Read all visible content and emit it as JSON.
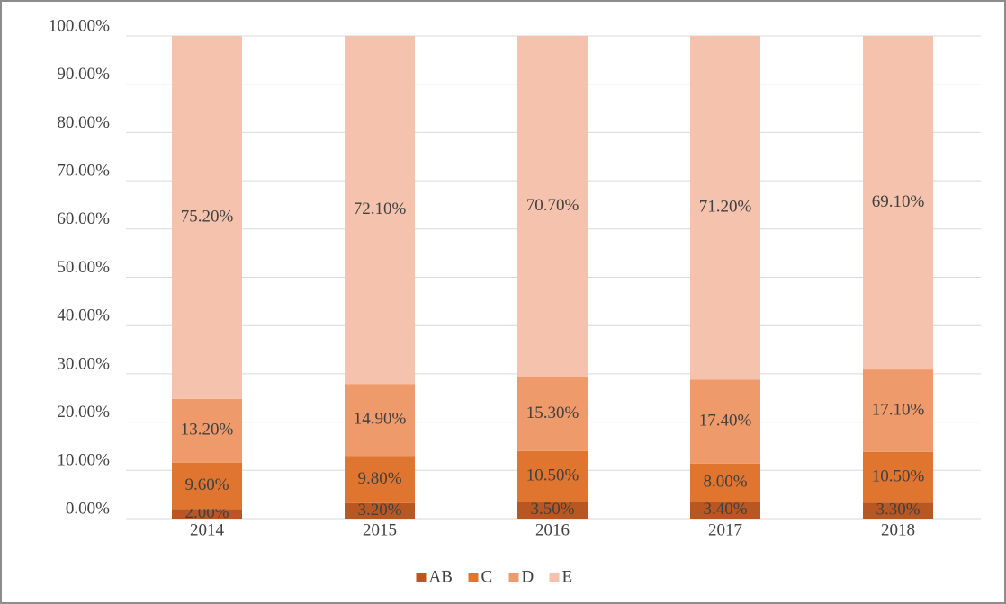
{
  "chart_data": {
    "type": "stacked_bar",
    "categories": [
      "2014",
      "2015",
      "2016",
      "2017",
      "2018"
    ],
    "series": [
      {
        "name": "AB",
        "color": "#b95722",
        "values": [
          2.0,
          3.2,
          3.5,
          3.4,
          3.3
        ],
        "value_labels": [
          "2.00%",
          "3.20%",
          "3.50%",
          "3.40%",
          "3.30%"
        ]
      },
      {
        "name": "C",
        "color": "#e07530",
        "values": [
          9.6,
          9.8,
          10.5,
          8.0,
          10.5
        ],
        "value_labels": [
          "9.60%",
          "9.80%",
          "10.50%",
          "8.00%",
          "10.50%"
        ]
      },
      {
        "name": "D",
        "color": "#ee9a6b",
        "values": [
          13.2,
          14.9,
          15.3,
          17.4,
          17.1
        ],
        "value_labels": [
          "13.20%",
          "14.90%",
          "15.30%",
          "17.40%",
          "17.10%"
        ]
      },
      {
        "name": "E",
        "color": "#f5c2ad",
        "values": [
          75.2,
          72.1,
          70.7,
          71.2,
          69.1
        ],
        "value_labels": [
          "75.20%",
          "72.10%",
          "70.70%",
          "71.20%",
          "69.10%"
        ]
      }
    ],
    "ylim": [
      0,
      100
    ],
    "yticks": [
      {
        "value": 0,
        "label": "0.00%"
      },
      {
        "value": 10,
        "label": "10.00%"
      },
      {
        "value": 20,
        "label": "20.00%"
      },
      {
        "value": 30,
        "label": "30.00%"
      },
      {
        "value": 40,
        "label": "40.00%"
      },
      {
        "value": 50,
        "label": "50.00%"
      },
      {
        "value": 60,
        "label": "60.00%"
      },
      {
        "value": 70,
        "label": "70.00%"
      },
      {
        "value": 80,
        "label": "80.00%"
      },
      {
        "value": 90,
        "label": "90.00%"
      },
      {
        "value": 100,
        "label": "100.00%"
      }
    ],
    "grid": true,
    "legend": "bottom"
  }
}
